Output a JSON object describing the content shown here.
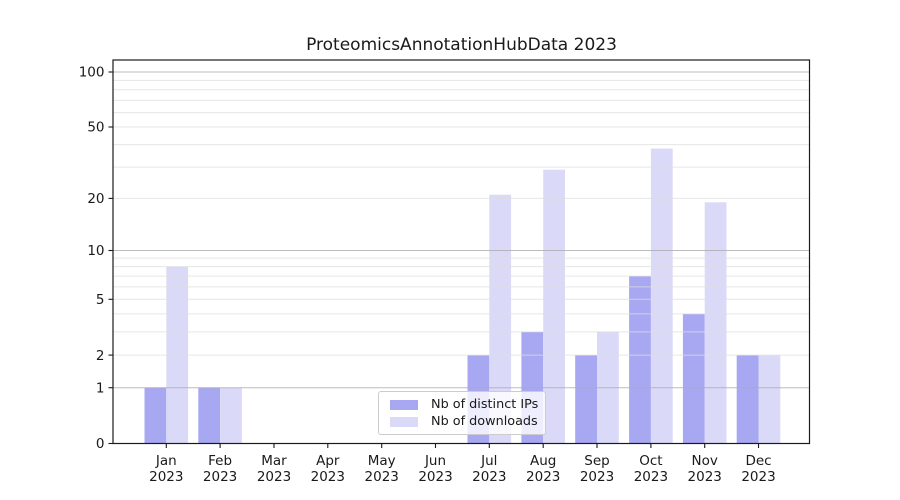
{
  "figure": {
    "background": "#ffffff"
  },
  "chart_data": {
    "type": "bar",
    "title": "ProteomicsAnnotationHubData 2023",
    "categories": [
      "Jan",
      "Feb",
      "Mar",
      "Apr",
      "May",
      "Jun",
      "Jul",
      "Aug",
      "Sep",
      "Oct",
      "Nov",
      "Dec"
    ],
    "category_year": "2023",
    "series": [
      {
        "name": "Nb of distinct IPs",
        "color": "#a7a7f2",
        "values": [
          1,
          1,
          0,
          0,
          0,
          0,
          2,
          3,
          2,
          7,
          4,
          2
        ]
      },
      {
        "name": "Nb of downloads",
        "color": "#dadaf8",
        "values": [
          8,
          1,
          0,
          0,
          0,
          0,
          21,
          29,
          3,
          38,
          19,
          2
        ]
      }
    ],
    "xlabel": "",
    "ylabel": "",
    "yscale": "log1p",
    "ytick_labels": [
      "0",
      "1",
      "2",
      "5",
      "10",
      "20",
      "50",
      "100"
    ],
    "ytick_values": [
      0,
      1,
      2,
      5,
      10,
      20,
      50,
      100
    ],
    "minor_gridlines": [
      2,
      3,
      4,
      5,
      6,
      7,
      8,
      9,
      20,
      30,
      40,
      50,
      60,
      70,
      80,
      90
    ],
    "major_gridlines": [
      1,
      10,
      100
    ],
    "ylim": [
      0,
      116
    ],
    "grid": true,
    "legend_position": "lower center",
    "colors": {
      "spine": "#1a1a1a",
      "tick_label": "#1a1a1a",
      "minor_grid": "#dddddd",
      "major_grid": "#ababab",
      "legend_border": "#cccccc"
    }
  }
}
